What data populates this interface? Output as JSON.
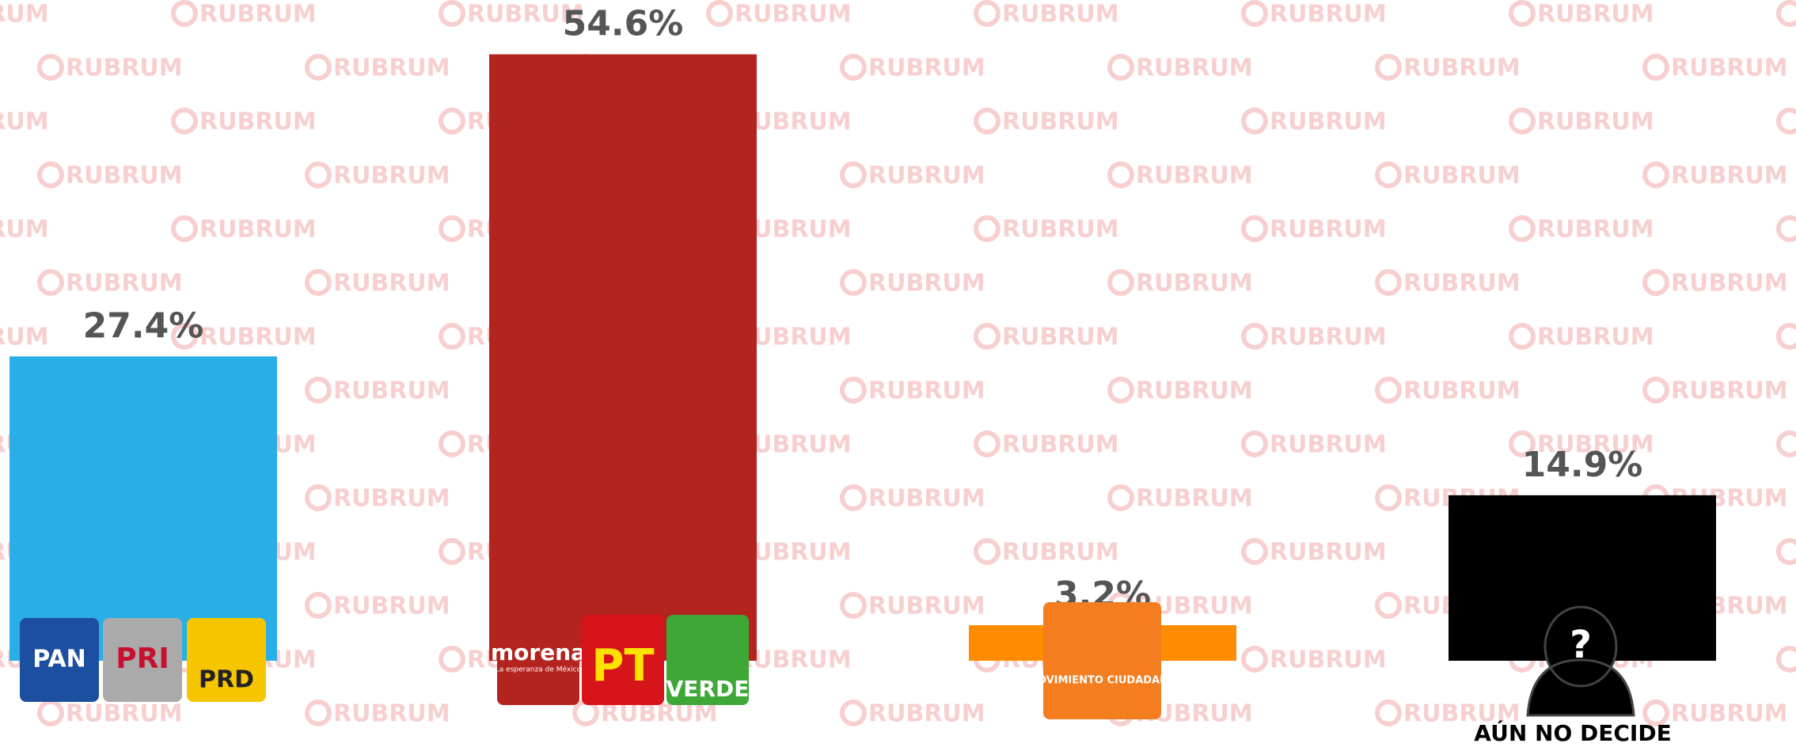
{
  "chart_data": {
    "type": "bar",
    "watermark": "RUBRUM",
    "categories": [
      [
        "PAN",
        "PRI",
        "PRD"
      ],
      [
        "morena",
        "PT",
        "VERDE"
      ],
      [
        "MOVIMIENTO CIUDADANO"
      ],
      [
        "AÚN NO DECIDE"
      ]
    ],
    "morena_tagline": "La esperanza de México",
    "values": [
      27.4,
      54.6,
      3.2,
      14.9
    ],
    "value_labels": [
      "27.4%",
      "54.6%",
      "3.2%",
      "14.9%"
    ],
    "colors": [
      "#29aee8",
      "#b3241f",
      "#ff8c00",
      "#000000"
    ],
    "ylim": [
      0,
      55
    ]
  }
}
